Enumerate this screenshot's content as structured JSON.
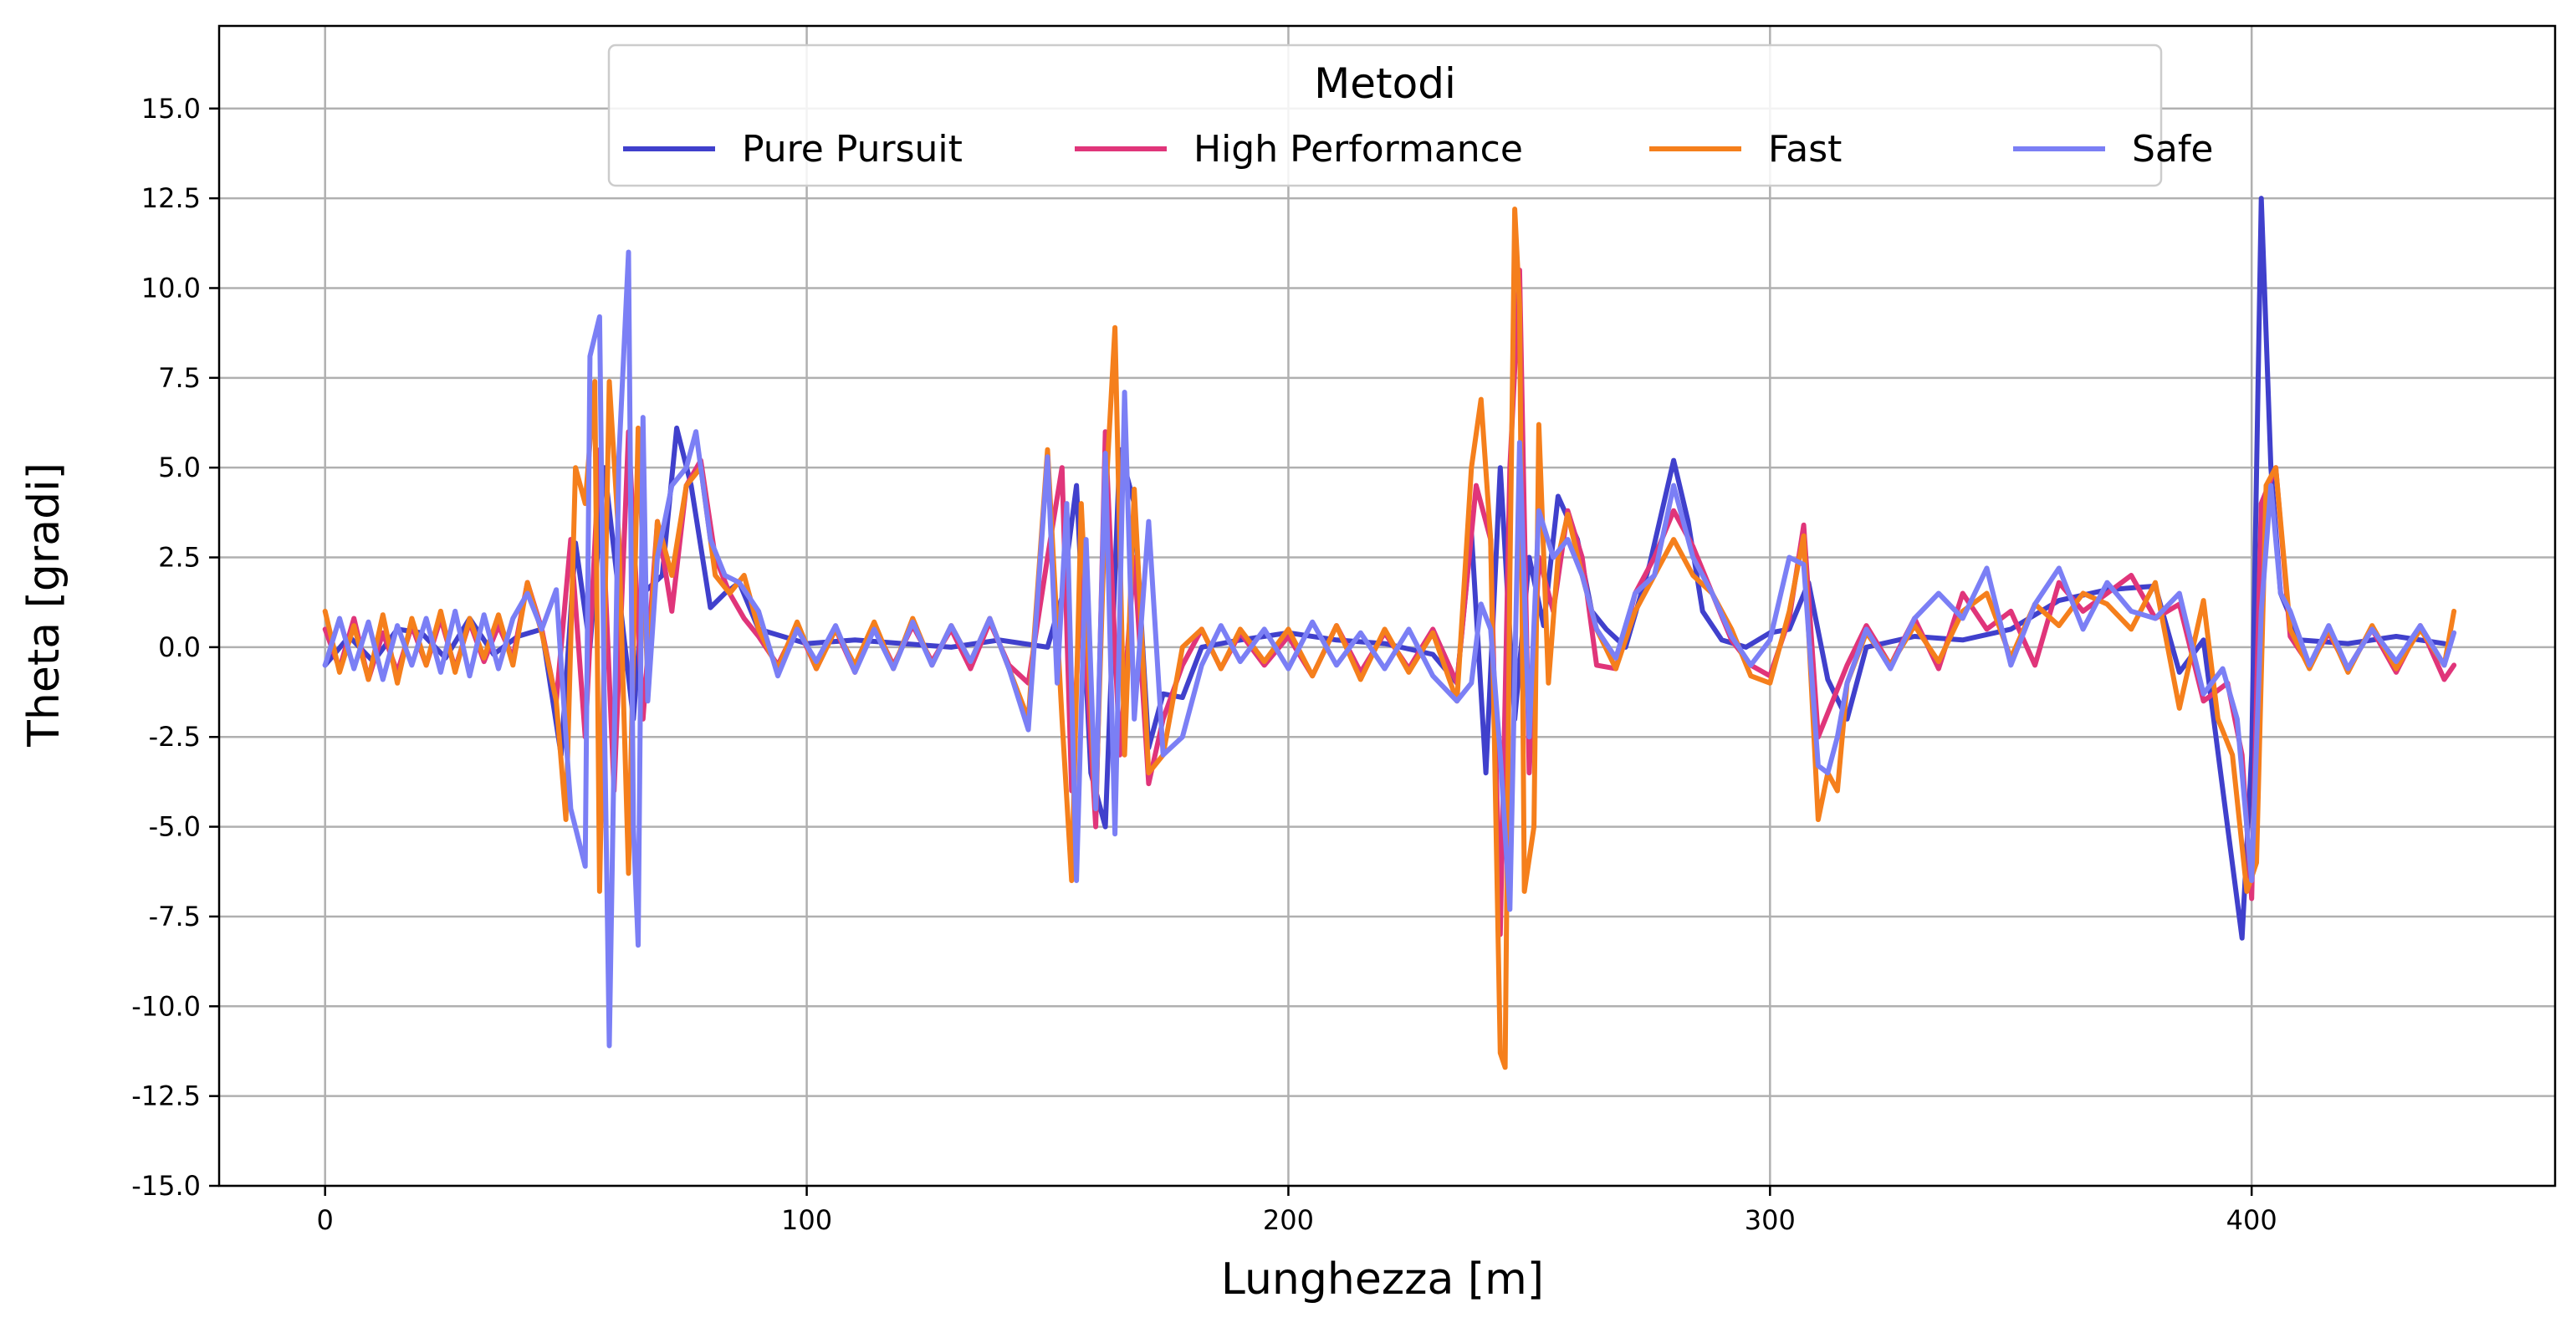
{
  "chart_data": {
    "type": "line",
    "title": "",
    "xlabel": "Lunghezza [m]",
    "ylabel": "Theta [gradi]",
    "xlim": [
      -22,
      463
    ],
    "ylim": [
      -15,
      17.3
    ],
    "xticks": [
      0,
      100,
      200,
      300,
      400
    ],
    "yticks": [
      -15.0,
      -12.5,
      -10.0,
      -7.5,
      -5.0,
      -2.5,
      0.0,
      2.5,
      5.0,
      7.5,
      10.0,
      12.5,
      15.0
    ],
    "grid": true,
    "legend": {
      "title": "Metodi",
      "placement": "upper-center",
      "columns": 4
    },
    "series": [
      {
        "name": "Pure Pursuit",
        "color": "#4040cc",
        "x": [
          0,
          5,
          10,
          15,
          20,
          25,
          30,
          35,
          40,
          45,
          49,
          52,
          55,
          58,
          61,
          64,
          66,
          70,
          73,
          76,
          80,
          83,
          86,
          90,
          100,
          110,
          120,
          130,
          140,
          145,
          150,
          153,
          156,
          159,
          162,
          165,
          168,
          171,
          174,
          178,
          182,
          190,
          200,
          210,
          220,
          230,
          235,
          238,
          241,
          244,
          247,
          250,
          253,
          256,
          260,
          263,
          266,
          270,
          275,
          280,
          283,
          286,
          290,
          295,
          300,
          304,
          308,
          312,
          316,
          320,
          330,
          340,
          350,
          360,
          370,
          380,
          385,
          390,
          395,
          398,
          400,
          402,
          404,
          406,
          410,
          420,
          430,
          440
        ],
        "y": [
          -0.5,
          0.3,
          -0.4,
          0.5,
          0.4,
          -0.3,
          0.8,
          -0.2,
          0.3,
          0.5,
          -3.0,
          2.9,
          0.0,
          5.0,
          1.5,
          -2.0,
          1.5,
          2.0,
          6.1,
          4.5,
          1.1,
          1.5,
          1.8,
          0.5,
          0.1,
          0.2,
          0.1,
          0.0,
          0.2,
          0.1,
          0.0,
          1.4,
          4.5,
          -3.5,
          -5.0,
          5.5,
          4.0,
          -2.8,
          -1.3,
          -1.4,
          0.0,
          0.2,
          0.4,
          0.2,
          0.1,
          -0.2,
          -1.0,
          3.2,
          -3.5,
          5.0,
          -2.0,
          2.5,
          0.6,
          4.2,
          3.0,
          1.0,
          0.5,
          0.0,
          2.3,
          5.2,
          3.5,
          1.0,
          0.2,
          0.0,
          0.4,
          0.5,
          1.8,
          -0.9,
          -2.0,
          0.0,
          0.3,
          0.2,
          0.5,
          1.3,
          1.6,
          1.7,
          -0.7,
          0.2,
          -5.0,
          -8.1,
          -3.0,
          12.5,
          5.0,
          1.5,
          0.2,
          0.1,
          0.3,
          0.1
        ]
      },
      {
        "name": "High Performance",
        "color": "#e0357a",
        "x": [
          0,
          3,
          6,
          9,
          12,
          15,
          18,
          21,
          24,
          27,
          30,
          33,
          36,
          39,
          42,
          45,
          48,
          51,
          54,
          57,
          60,
          63,
          66,
          69,
          72,
          75,
          78,
          81,
          84,
          87,
          90,
          94,
          98,
          102,
          106,
          110,
          114,
          118,
          122,
          126,
          130,
          134,
          138,
          142,
          146,
          150,
          153,
          155,
          157,
          160,
          162,
          165,
          168,
          171,
          174,
          178,
          182,
          186,
          190,
          195,
          200,
          205,
          210,
          215,
          220,
          225,
          230,
          235,
          239,
          242,
          244,
          246,
          248,
          250,
          252,
          255,
          258,
          261,
          264,
          268,
          272,
          276,
          280,
          284,
          288,
          292,
          296,
          300,
          304,
          307,
          310,
          313,
          316,
          320,
          325,
          330,
          335,
          340,
          345,
          350,
          355,
          360,
          365,
          370,
          375,
          380,
          385,
          390,
          395,
          398,
          400,
          402,
          405,
          408,
          412,
          416,
          420,
          425,
          430,
          435,
          440,
          442
        ],
        "y": [
          0.5,
          -0.6,
          0.8,
          -0.9,
          0.4,
          -0.7,
          0.6,
          -0.5,
          0.8,
          -0.6,
          0.7,
          -0.4,
          0.6,
          -0.3,
          1.8,
          0.5,
          -1.5,
          3.0,
          -2.5,
          5.5,
          -4.0,
          6.0,
          -2.0,
          3.5,
          1.0,
          4.5,
          5.2,
          2.5,
          1.5,
          0.8,
          0.3,
          -0.5,
          0.6,
          -0.6,
          0.5,
          -0.7,
          0.6,
          -0.5,
          0.6,
          -0.4,
          0.5,
          -0.6,
          0.7,
          -0.5,
          -1.0,
          2.5,
          5.0,
          -4.0,
          2.0,
          -5.0,
          6.0,
          -3.0,
          2.5,
          -3.8,
          -2.0,
          -0.5,
          0.5,
          -0.6,
          0.4,
          -0.5,
          0.3,
          -0.8,
          0.6,
          -0.7,
          0.4,
          -0.6,
          0.5,
          -1.0,
          4.5,
          3.0,
          -8.0,
          5.0,
          10.5,
          -3.5,
          2.5,
          1.0,
          3.8,
          2.5,
          -0.5,
          -0.6,
          1.5,
          2.5,
          3.8,
          2.8,
          1.5,
          0.2,
          -0.5,
          -0.8,
          0.8,
          3.4,
          -2.5,
          -1.5,
          -0.5,
          0.6,
          -0.5,
          0.8,
          -0.6,
          1.5,
          0.5,
          1.0,
          -0.5,
          1.8,
          1.0,
          1.5,
          2.0,
          0.8,
          1.2,
          -1.5,
          -1.0,
          -3.0,
          -7.0,
          4.0,
          5.0,
          0.3,
          -0.5,
          0.4,
          -0.6,
          0.5,
          -0.7,
          0.6,
          -0.9,
          -0.5
        ]
      },
      {
        "name": "Fast",
        "color": "#f57f1c",
        "x": [
          0,
          3,
          6,
          9,
          12,
          15,
          18,
          21,
          24,
          27,
          30,
          33,
          36,
          39,
          42,
          45,
          48,
          50,
          52,
          54,
          56,
          57,
          59,
          61,
          63,
          65,
          67,
          69,
          72,
          75,
          78,
          81,
          84,
          87,
          90,
          94,
          98,
          102,
          106,
          110,
          114,
          118,
          122,
          126,
          130,
          134,
          138,
          142,
          146,
          150,
          153,
          155,
          157,
          160,
          162,
          164,
          166,
          168,
          171,
          174,
          178,
          182,
          186,
          190,
          195,
          200,
          205,
          210,
          215,
          220,
          225,
          230,
          235,
          238,
          240,
          242,
          244,
          245,
          246,
          247,
          248,
          249,
          251,
          252,
          254,
          256,
          258,
          261,
          264,
          268,
          272,
          276,
          280,
          284,
          288,
          292,
          296,
          300,
          304,
          307,
          310,
          312,
          314,
          316,
          320,
          325,
          330,
          335,
          340,
          345,
          350,
          355,
          360,
          365,
          370,
          375,
          380,
          385,
          390,
          393,
          396,
          399,
          401,
          403,
          405,
          408,
          412,
          416,
          420,
          425,
          430,
          435,
          440,
          442
        ],
        "y": [
          1.0,
          -0.7,
          0.6,
          -0.9,
          0.9,
          -1.0,
          0.8,
          -0.5,
          1.0,
          -0.7,
          0.8,
          -0.3,
          0.9,
          -0.5,
          1.8,
          0.4,
          -1.5,
          -4.8,
          5.0,
          4.0,
          7.4,
          -6.8,
          7.4,
          3.0,
          -6.3,
          6.1,
          -1.0,
          3.5,
          2.0,
          4.5,
          5.0,
          2.0,
          1.5,
          2.0,
          0.5,
          -0.6,
          0.7,
          -0.6,
          0.5,
          -0.5,
          0.7,
          -0.6,
          0.8,
          -0.5,
          0.6,
          -0.4,
          0.8,
          -0.6,
          -2.0,
          5.5,
          -2.0,
          -6.5,
          4.0,
          -4.5,
          4.0,
          8.9,
          -3.0,
          4.4,
          -3.5,
          -3.0,
          0.0,
          0.5,
          -0.6,
          0.5,
          -0.4,
          0.5,
          -0.8,
          0.6,
          -0.9,
          0.5,
          -0.7,
          0.4,
          -1.5,
          5.0,
          6.9,
          3.0,
          -11.3,
          -11.7,
          2.0,
          12.2,
          9.5,
          -6.8,
          -5.0,
          6.2,
          -1.0,
          2.5,
          3.7,
          2.0,
          0.5,
          -0.6,
          1.0,
          2.0,
          3.0,
          2.0,
          1.5,
          0.5,
          -0.8,
          -1.0,
          1.0,
          3.1,
          -4.8,
          -3.5,
          -4.0,
          -1.0,
          0.4,
          -0.5,
          0.6,
          -0.4,
          1.0,
          1.5,
          -0.3,
          1.2,
          0.6,
          1.5,
          1.2,
          0.5,
          1.8,
          -1.7,
          1.3,
          -2.0,
          -3.0,
          -6.8,
          -6.0,
          4.5,
          5.0,
          0.5,
          -0.6,
          0.5,
          -0.7,
          0.6,
          -0.6,
          0.5,
          -0.5,
          1.0
        ]
      },
      {
        "name": "Safe",
        "color": "#7b7ff5",
        "x": [
          0,
          3,
          6,
          9,
          12,
          15,
          18,
          21,
          24,
          27,
          30,
          33,
          36,
          39,
          42,
          45,
          48,
          51,
          54,
          55,
          57,
          58,
          59,
          61,
          63,
          64,
          65,
          66,
          67,
          69,
          72,
          75,
          77,
          80,
          83,
          86,
          90,
          94,
          98,
          102,
          106,
          110,
          114,
          118,
          122,
          126,
          130,
          134,
          138,
          142,
          146,
          150,
          152,
          154,
          156,
          158,
          160,
          162,
          164,
          166,
          168,
          171,
          174,
          178,
          182,
          186,
          190,
          195,
          200,
          205,
          210,
          215,
          220,
          225,
          230,
          235,
          238,
          240,
          242,
          244,
          246,
          248,
          250,
          252,
          255,
          258,
          261,
          264,
          268,
          272,
          276,
          280,
          284,
          288,
          292,
          296,
          300,
          304,
          307,
          310,
          312,
          314,
          316,
          320,
          325,
          330,
          335,
          340,
          345,
          350,
          355,
          360,
          365,
          370,
          375,
          380,
          385,
          390,
          394,
          397,
          400,
          402,
          404,
          406,
          408,
          412,
          416,
          420,
          425,
          430,
          435,
          440,
          442
        ],
        "y": [
          -0.5,
          0.8,
          -0.6,
          0.7,
          -0.9,
          0.6,
          -0.5,
          0.8,
          -0.7,
          1.0,
          -0.8,
          0.9,
          -0.6,
          0.8,
          1.5,
          0.5,
          1.6,
          -4.5,
          -6.1,
          8.1,
          9.2,
          -2.0,
          -11.1,
          5.3,
          11.0,
          -5.0,
          -8.3,
          6.4,
          -1.5,
          2.5,
          4.5,
          5.0,
          6.0,
          3.0,
          2.0,
          1.8,
          1.0,
          -0.8,
          0.5,
          -0.4,
          0.6,
          -0.7,
          0.5,
          -0.6,
          0.7,
          -0.5,
          0.6,
          -0.4,
          0.8,
          -0.6,
          -2.3,
          5.3,
          -1.0,
          4.0,
          -6.5,
          3.0,
          -4.5,
          5.4,
          -5.2,
          7.1,
          -2.0,
          3.5,
          -3.0,
          -2.5,
          -0.5,
          0.6,
          -0.4,
          0.5,
          -0.6,
          0.7,
          -0.5,
          0.4,
          -0.6,
          0.5,
          -0.8,
          -1.5,
          -1.0,
          1.2,
          0.5,
          -3.0,
          -7.3,
          5.7,
          -2.5,
          3.8,
          2.5,
          3.0,
          2.0,
          0.5,
          -0.3,
          1.5,
          2.0,
          4.5,
          2.5,
          1.5,
          0.3,
          -0.5,
          0.2,
          2.5,
          2.3,
          -3.3,
          -3.5,
          -2.5,
          -1.0,
          0.5,
          -0.6,
          0.8,
          1.5,
          0.8,
          2.2,
          -0.5,
          1.2,
          2.2,
          0.5,
          1.8,
          1.0,
          0.8,
          1.5,
          -1.3,
          -0.6,
          -2.0,
          -6.5,
          1.0,
          4.5,
          1.5,
          1.0,
          -0.5,
          0.6,
          -0.6,
          0.5,
          -0.4,
          0.6,
          -0.5,
          0.4
        ]
      }
    ]
  }
}
